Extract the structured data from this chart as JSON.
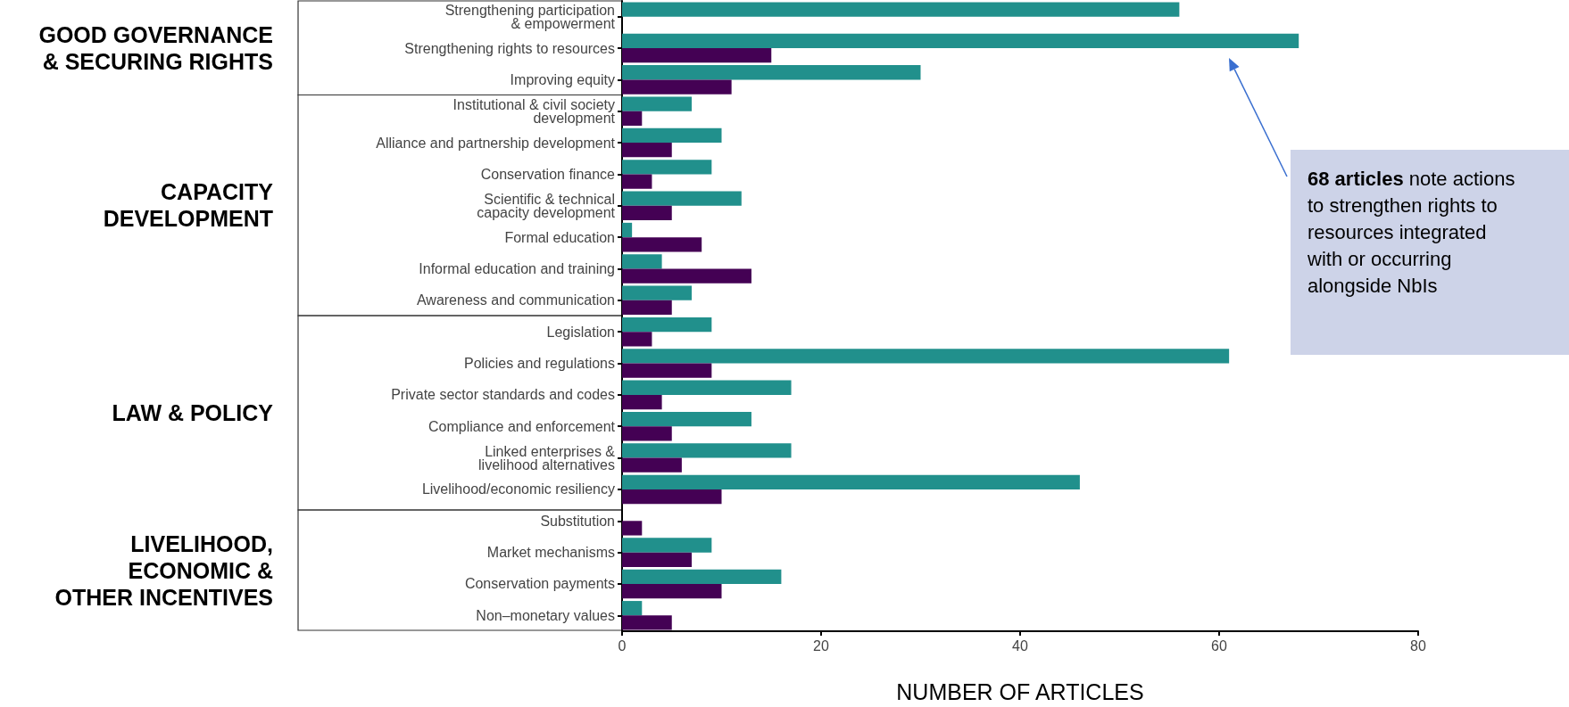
{
  "chart_data": {
    "type": "bar",
    "orientation": "horizontal",
    "xlabel": "NUMBER OF ARTICLES",
    "categories": [
      "Strengthening participation\n& empowerment",
      "Strengthening rights to resources",
      "Improving equity",
      "Institutional & civil society\ndevelopment",
      "Alliance and partnership development",
      "Conservation finance",
      "Scientific & technical\ncapacity development",
      "Formal education",
      "Informal education and training",
      "Awareness and communication",
      "Legislation",
      "Policies and regulations",
      "Private sector standards and codes",
      "Compliance and enforcement",
      "Linked enterprises &\nlivelihood alternatives",
      "Livelihood/economic resiliency",
      "Substitution",
      "Market mechanisms",
      "Conservation payments",
      "Non–monetary values"
    ],
    "series": [
      {
        "color": "#21908c",
        "values": [
          56,
          68,
          30,
          7,
          10,
          9,
          12,
          1,
          4,
          7,
          9,
          61,
          17,
          13,
          17,
          46,
          0,
          9,
          16,
          2
        ]
      },
      {
        "color": "#440154",
        "values": [
          0,
          15,
          11,
          2,
          5,
          3,
          5,
          8,
          13,
          5,
          3,
          9,
          4,
          5,
          6,
          10,
          2,
          7,
          10,
          5
        ]
      }
    ],
    "xlim": [
      0,
      80
    ],
    "xticks": [
      0,
      20,
      40,
      60,
      80
    ],
    "annotations": [
      "68 articles note actions to strengthen rights to resources integrated with or occurring alongside NbIs",
      "GOOD GOVERNANCE\n& SECURING RIGHTS",
      "CAPACITY\nDEVELOPMENT",
      "LAW & POLICY",
      "LIVELIHOOD,\nECONOMIC &\nOTHER INCENTIVES"
    ]
  }
}
